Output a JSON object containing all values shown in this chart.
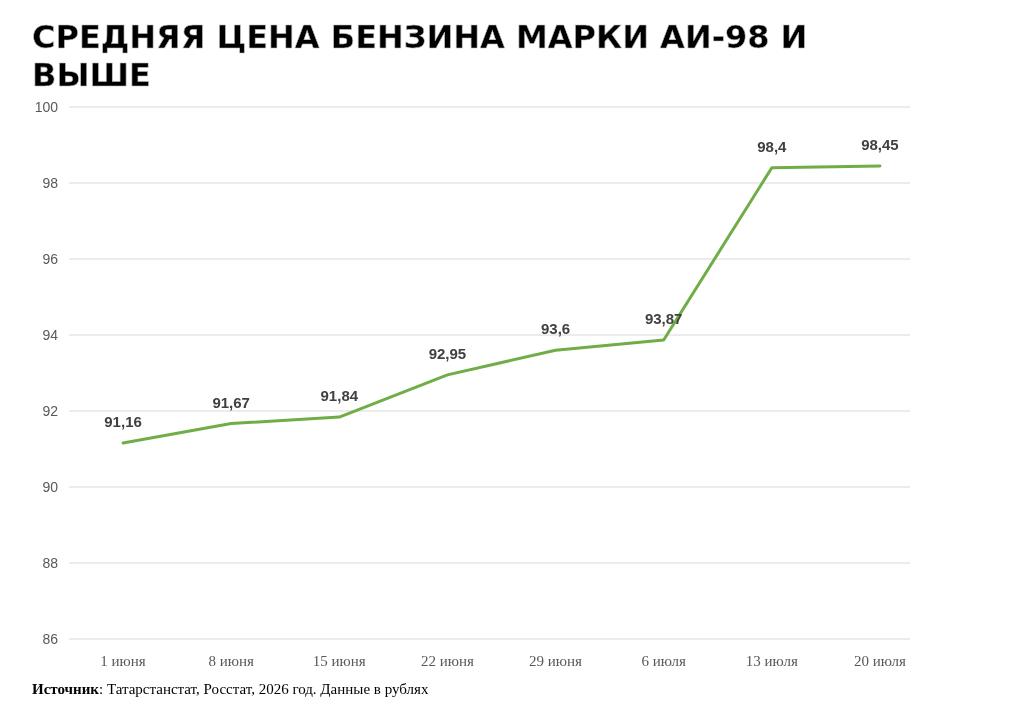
{
  "chart_data": {
    "type": "line",
    "title": "СРЕДНЯЯ ЦЕНА БЕНЗИНА МАРКИ АИ-98 И ВЫШЕ",
    "categories": [
      "1 июня",
      "8 июня",
      "15 июня",
      "22 июня",
      "29 июня",
      "6 июля",
      "13 июля",
      "20 июля"
    ],
    "series": [
      {
        "color": "#70ad47",
        "values": [
          91.16,
          91.67,
          91.84,
          92.95,
          93.6,
          93.87,
          98.4,
          98.45
        ]
      }
    ],
    "value_labels": [
      "91,16",
      "91,67",
      "91,84",
      "92,95",
      "93,6",
      "93,87",
      "98,4",
      "98,45"
    ],
    "ylim": [
      86,
      100
    ],
    "yticks": [
      86,
      88,
      90,
      92,
      94,
      96,
      98,
      100
    ],
    "grid": "y",
    "marker": "none",
    "line_style": "solid",
    "annotations": [
      "**Источник**: Татарстанстат, Росстат, 2026 год. Данные в рублях"
    ]
  }
}
